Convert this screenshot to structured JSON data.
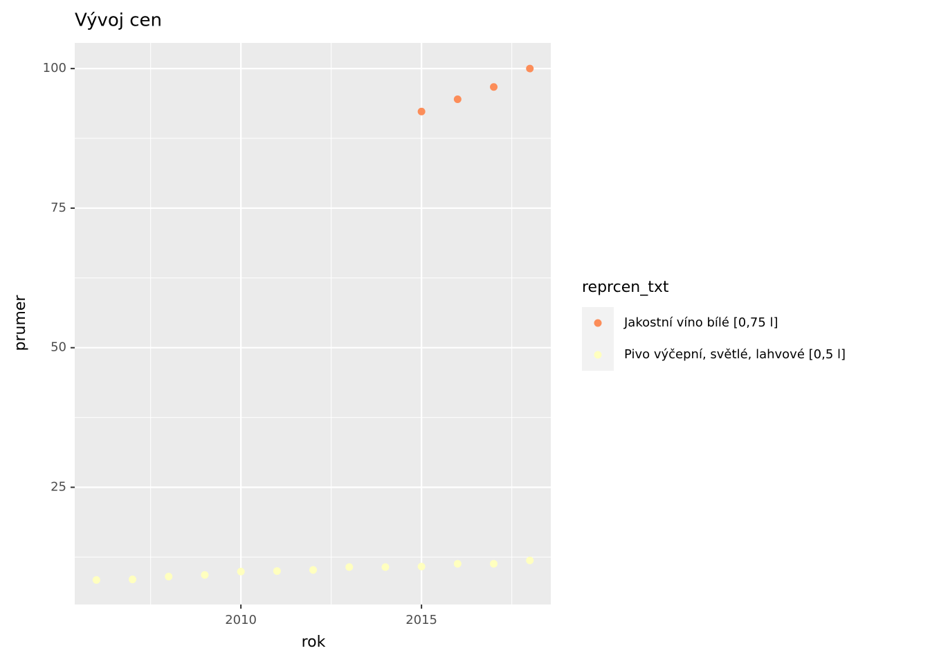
{
  "chart_data": {
    "type": "scatter",
    "title": "Vývoj cen",
    "x_label": "rok",
    "y_label": "prumer",
    "legend_title": "reprcen_txt",
    "legend_position": "right",
    "grid": true,
    "xlim": [
      2005.4,
      2018.58
    ],
    "ylim": [
      4.0,
      104.6
    ],
    "xticks": [
      2010,
      2015
    ],
    "yticks": [
      25,
      50,
      75,
      100
    ],
    "minor_xticks": [
      2007.5,
      2012.5,
      2017.5
    ],
    "minor_yticks": [
      12.5,
      37.5,
      62.5,
      87.5
    ],
    "series": [
      {
        "name": "Jakostní víno bílé [0,75 l]",
        "color": "#fc8d59",
        "x": [
          2015,
          2016,
          2017,
          2018
        ],
        "values": [
          92.3,
          94.5,
          96.7,
          100.0
        ]
      },
      {
        "name": "Pivo výčepní, světlé, lahvové [0,5 l]",
        "color": "#ffffbf",
        "x": [
          2006,
          2007,
          2008,
          2009,
          2010,
          2011,
          2012,
          2013,
          2014,
          2015,
          2016,
          2017,
          2018
        ],
        "values": [
          8.4,
          8.5,
          9.0,
          9.3,
          9.9,
          10.0,
          10.2,
          10.7,
          10.7,
          10.8,
          11.3,
          11.3,
          11.9
        ]
      }
    ]
  }
}
